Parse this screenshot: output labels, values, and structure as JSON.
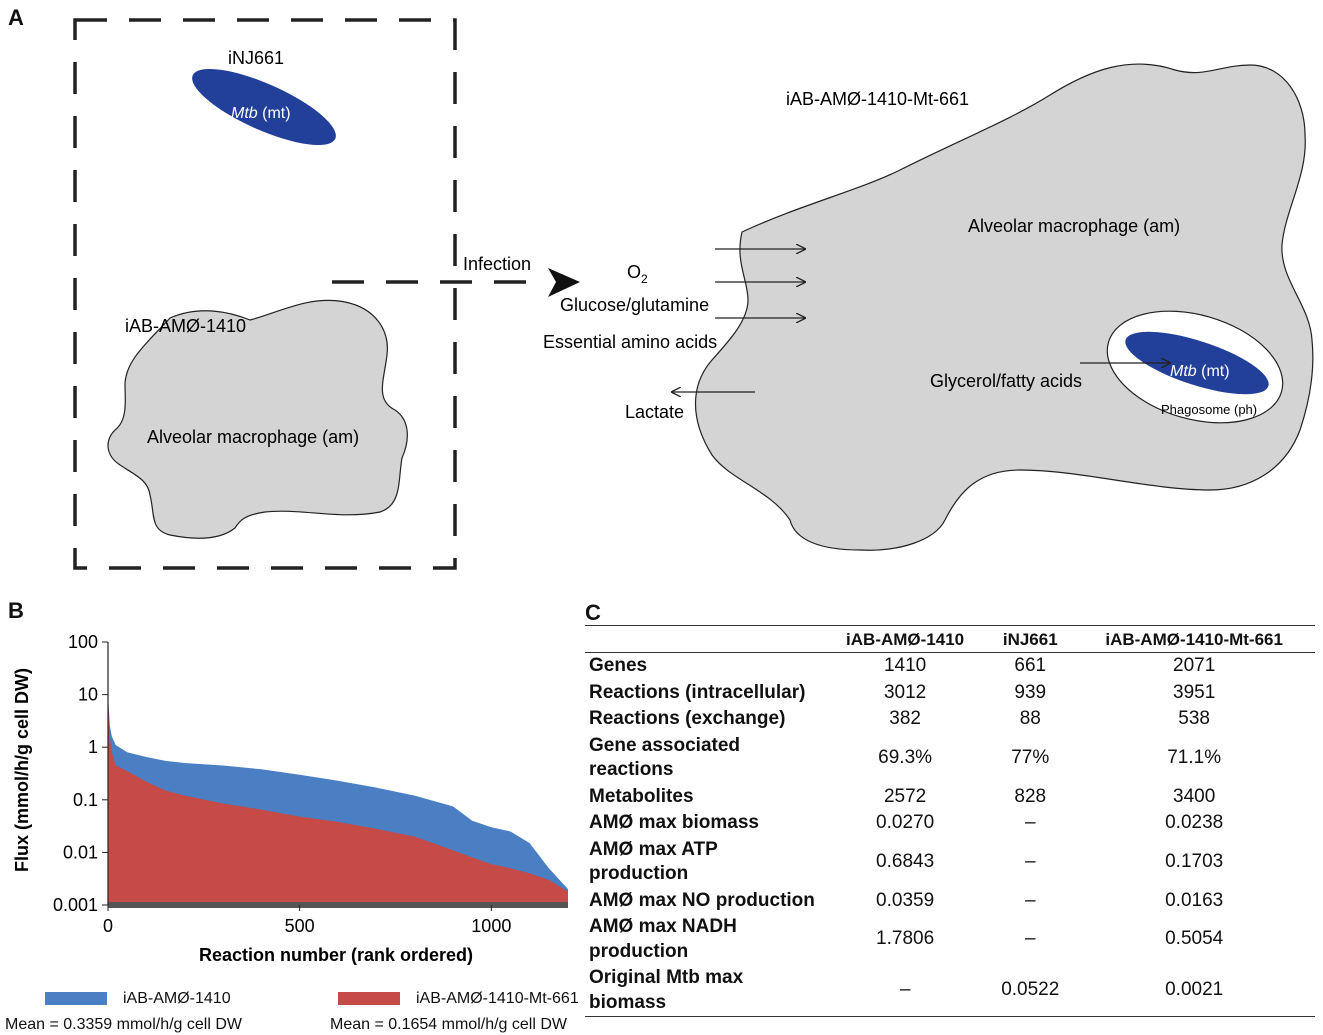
{
  "panels": {
    "a": "A",
    "b": "B",
    "c": "C"
  },
  "panel_a": {
    "inj661_label": "iNJ661",
    "mtb_italic": "Mtb",
    "mtb_suffix": " (mt)",
    "iab1410_label": "iAB-AMØ-1410",
    "alveolar_left": "Alveolar macrophage (am)",
    "infection_label": "Infection",
    "o2_label": "O",
    "o2_subscript": "2",
    "glucose_label": "Glucose/glutamine",
    "essential_label": "Essential amino acids",
    "lactate_label": "Lactate",
    "combined_label": "iAB-AMØ-1410-Mt-661",
    "alveolar_right": "Alveolar macrophage (am)",
    "glycerol_label": "Glycerol/fatty acids",
    "phagosome_label": "Phagosome (ph)",
    "colors": {
      "mtb": "#22409a",
      "cell": "#d4d4d4"
    }
  },
  "chart_data": {
    "type": "area",
    "xlabel": "Reaction number (rank ordered)",
    "ylabel": "Flux (mmol/h/g cell DW)",
    "yscale": "log",
    "ylim": [
      0.001,
      100
    ],
    "xlim": [
      0,
      1200
    ],
    "yticks": [
      "100",
      "10",
      "1",
      "0.1",
      "0.01",
      "0.001"
    ],
    "xticks": [
      "0",
      "500",
      "1000"
    ],
    "series": [
      {
        "name": "iAB-AMØ-1410",
        "color": "#4a7fc4",
        "x": [
          0,
          5,
          10,
          20,
          50,
          100,
          150,
          200,
          300,
          400,
          500,
          600,
          700,
          800,
          900,
          950,
          1000,
          1050,
          1100,
          1150,
          1200
        ],
        "y": [
          10,
          2.5,
          1.6,
          1.1,
          0.8,
          0.65,
          0.55,
          0.5,
          0.45,
          0.38,
          0.3,
          0.23,
          0.17,
          0.12,
          0.075,
          0.04,
          0.03,
          0.025,
          0.015,
          0.005,
          0.002
        ]
      },
      {
        "name": "iAB-AMØ-1410-Mt-661",
        "color": "#c64a45",
        "x": [
          0,
          5,
          10,
          20,
          50,
          100,
          150,
          200,
          300,
          400,
          500,
          600,
          700,
          800,
          900,
          950,
          1000,
          1050,
          1100,
          1150,
          1200
        ],
        "y": [
          8,
          1.5,
          0.8,
          0.45,
          0.35,
          0.22,
          0.15,
          0.12,
          0.085,
          0.065,
          0.048,
          0.038,
          0.028,
          0.02,
          0.011,
          0.008,
          0.006,
          0.005,
          0.004,
          0.003,
          0.0018
        ]
      }
    ]
  },
  "legend": [
    {
      "name": "iAB-AMØ-1410",
      "mean": "Mean = 0.3359 mmol/h/g cell DW",
      "color": "#4a7fc4"
    },
    {
      "name": "iAB-AMØ-1410-Mt-661",
      "mean": "Mean = 0.1654 mmol/h/g cell DW",
      "color": "#c64a45"
    }
  ],
  "table": {
    "headers": [
      "",
      "iAB-AMØ-1410",
      "iNJ661",
      "iAB-AMØ-1410-Mt-661"
    ],
    "rows": [
      [
        "Genes",
        "1410",
        "661",
        "2071"
      ],
      [
        "Reactions (intracellular)",
        "3012",
        "939",
        "3951"
      ],
      [
        "Reactions (exchange)",
        "382",
        "88",
        "538"
      ],
      [
        "Gene associated reactions",
        "69.3%",
        "77%",
        "71.1%"
      ],
      [
        "Metabolites",
        "2572",
        "828",
        "3400"
      ],
      [
        "AMØ max biomass",
        "0.0270",
        "–",
        "0.0238"
      ],
      [
        "AMØ max ATP production",
        "0.6843",
        "–",
        "0.1703"
      ],
      [
        "AMØ max NO production",
        "0.0359",
        "–",
        "0.0163"
      ],
      [
        "AMØ max NADH production",
        "1.7806",
        "–",
        "0.5054"
      ],
      [
        "Original Mtb max biomass",
        "–",
        "0.0522",
        "0.0021"
      ]
    ]
  }
}
